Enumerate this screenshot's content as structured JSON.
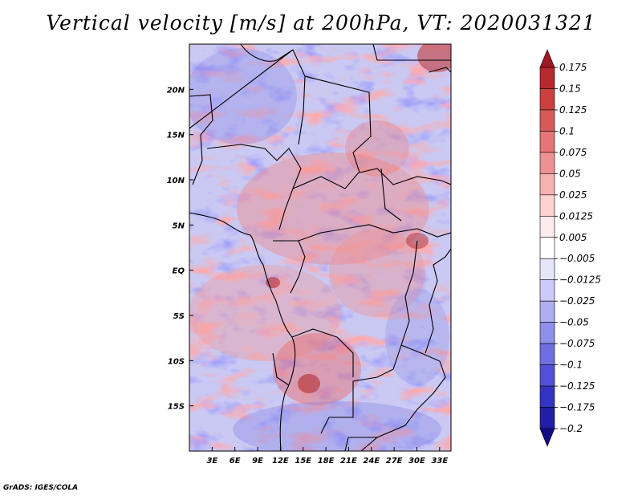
{
  "title": "Vertical velocity [m/s] at 200hPa, VT: 2020031321",
  "credit": "GrADS: IGES/COLA",
  "map": {
    "variable": "Vertical velocity",
    "units": "m/s",
    "level": "200hPa",
    "valid_time": "2020031321",
    "lat_labels": [
      "20N",
      "15N",
      "10N",
      "5N",
      "EQ",
      "5S",
      "10S",
      "15S"
    ],
    "lon_labels": [
      "3E",
      "6E",
      "9E",
      "12E",
      "15E",
      "18E",
      "21E",
      "24E",
      "27E",
      "30E",
      "33E"
    ],
    "lat_values": [
      20,
      15,
      10,
      5,
      0,
      -5,
      -10,
      -15
    ],
    "lon_values": [
      3,
      6,
      9,
      12,
      15,
      18,
      21,
      24,
      27,
      30,
      33
    ],
    "lon_range": [
      0,
      34.5
    ],
    "lat_range": [
      -20,
      25
    ]
  },
  "colorbar": {
    "labels": [
      "0.175",
      "0.15",
      "0.125",
      "0.1",
      "0.075",
      "0.05",
      "0.025",
      "0.0125",
      "0.005",
      "−0.005",
      "−0.0125",
      "−0.025",
      "−0.05",
      "−0.075",
      "−0.1",
      "−0.125",
      "−0.175",
      "−0.2"
    ],
    "colors": [
      "#a01822",
      "#b42a2e",
      "#c9403f",
      "#d8595a",
      "#e57577",
      "#ee9192",
      "#f6b1b1",
      "#fbd1d1",
      "#fdeaea",
      "#ffffff",
      "#e6e6fb",
      "#cccbf7",
      "#aeaef1",
      "#8f8feb",
      "#6f6ee3",
      "#5150d6",
      "#3434c2",
      "#211fa6",
      "#130c84"
    ]
  }
}
